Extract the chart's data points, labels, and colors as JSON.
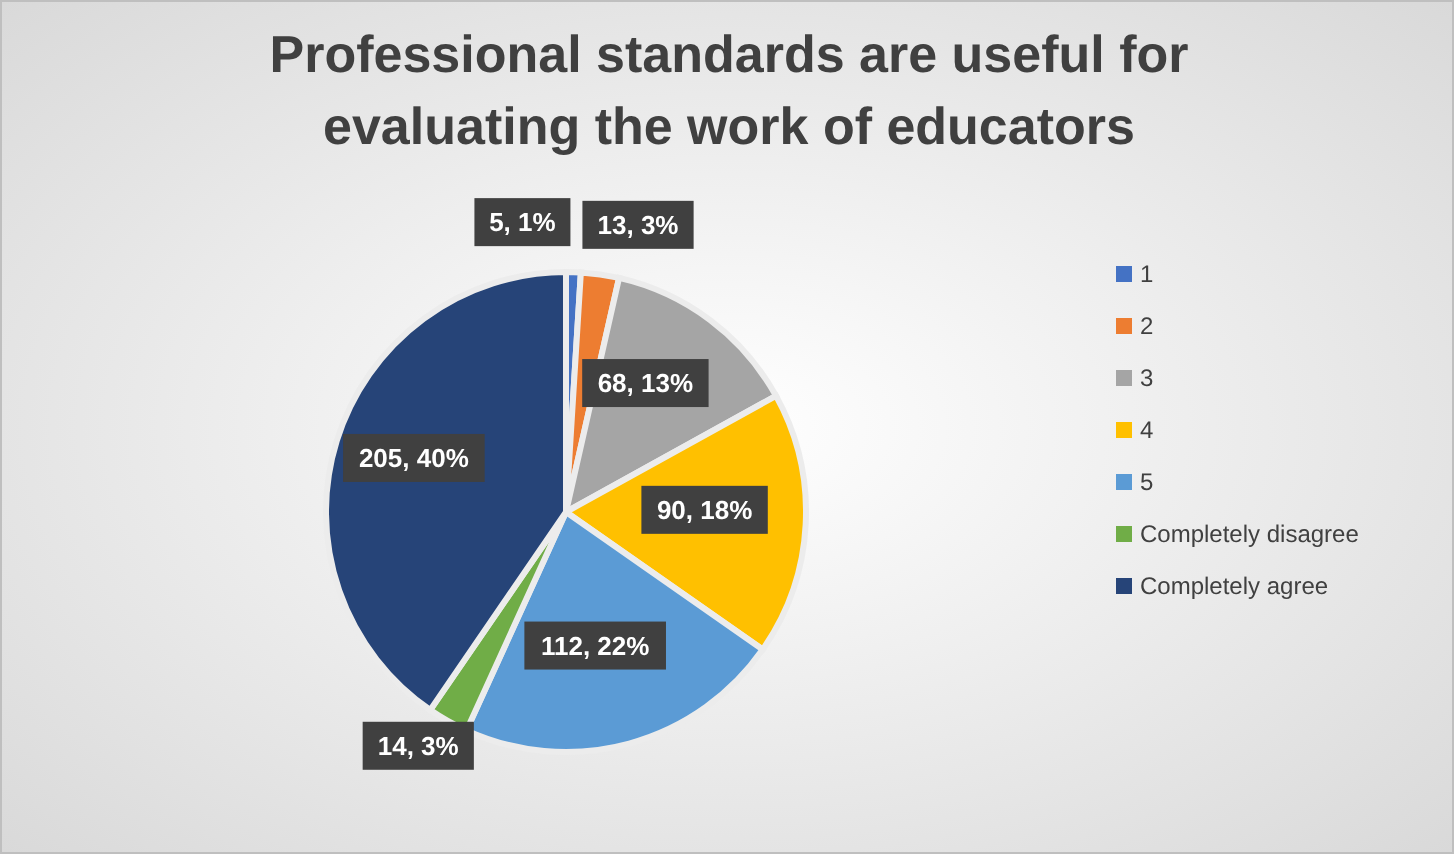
{
  "chart_data": {
    "type": "pie",
    "title": "Professional standards are useful for evaluating the work of educators",
    "categories": [
      "1",
      "2",
      "3",
      "4",
      "5",
      "Completely disagree",
      "Completely agree"
    ],
    "values": [
      5,
      13,
      68,
      90,
      112,
      14,
      205
    ],
    "colors": [
      "#4472c4",
      "#ed7d31",
      "#a5a5a5",
      "#ffc000",
      "#5b9bd5",
      "#70ad47",
      "#264478"
    ],
    "value_labels": [
      "5, 1%",
      "13, 3%",
      "68, 13%",
      "90, 18%",
      "112, 22%",
      "14, 3%",
      "205, 40%"
    ],
    "legend": "right"
  }
}
